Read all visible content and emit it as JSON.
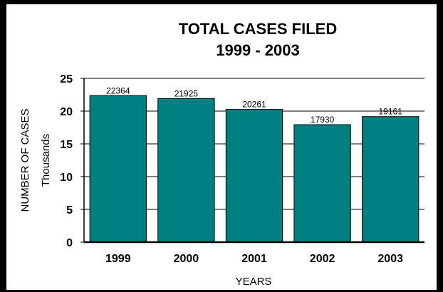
{
  "chart_data": {
    "type": "bar",
    "title": "TOTAL CASES FILED",
    "subtitle": "1999 - 2003",
    "xlabel": "YEARS",
    "ylabel": "NUMBER OF CASES",
    "ylabel_unit": "Thousands",
    "categories": [
      "1999",
      "2000",
      "2001",
      "2002",
      "2003"
    ],
    "values": [
      22364,
      21925,
      20261,
      17930,
      19161
    ],
    "data_labels": [
      "22364",
      "21925",
      "20261",
      "17930",
      "19161"
    ],
    "y_ticks": [
      "0",
      "5",
      "10",
      "15",
      "20",
      "25"
    ],
    "ylim": [
      0,
      25000
    ],
    "grid": true,
    "legend": "none",
    "bar_color": "#008080"
  }
}
